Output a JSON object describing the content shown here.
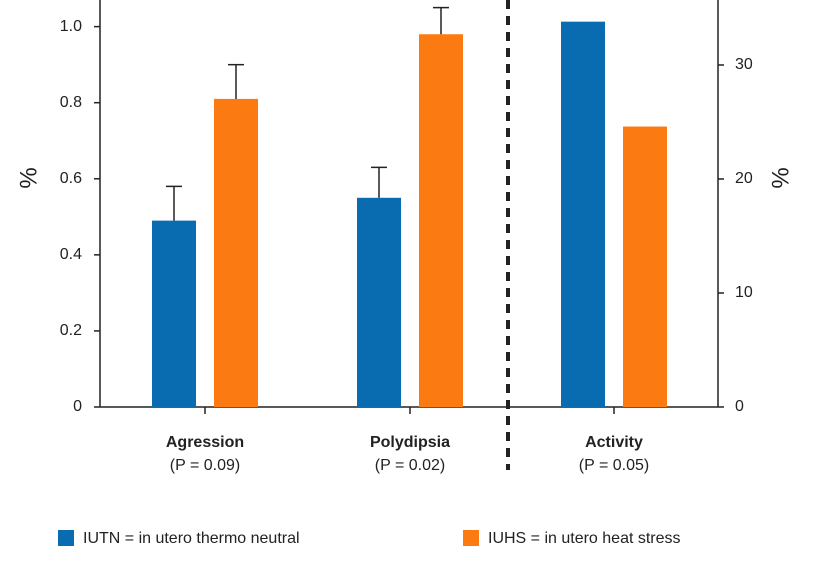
{
  "chart_data": {
    "type": "bar",
    "y_label": "%",
    "y2_label": "%",
    "categories": [
      "Agression",
      "Polydipsia",
      "Activity"
    ],
    "category_notes": [
      "(P = 0.09)",
      "(P = 0.02)",
      "(P = 0.05)"
    ],
    "category_axis": [
      "y",
      "y",
      "y2"
    ],
    "series": [
      {
        "name": "IUTN = in utero thermo neutral",
        "color": "#0a6cb0",
        "values": [
          0.49,
          0.55,
          33.8
        ],
        "errors": [
          0.09,
          0.08,
          null
        ]
      },
      {
        "name": "IUHS = in utero heat stress",
        "color": "#fb7b12",
        "values": [
          0.81,
          0.98,
          24.6
        ],
        "errors": [
          0.09,
          0.07,
          null
        ]
      }
    ],
    "ylim": [
      0,
      1.07
    ],
    "yticks": [
      0,
      0.2,
      0.4,
      0.6,
      0.8,
      {
        "value": 1,
        "label": "1.0"
      }
    ],
    "y2lim": [
      0,
      35.7
    ],
    "y2ticks": [
      0,
      10,
      20,
      30
    ]
  }
}
